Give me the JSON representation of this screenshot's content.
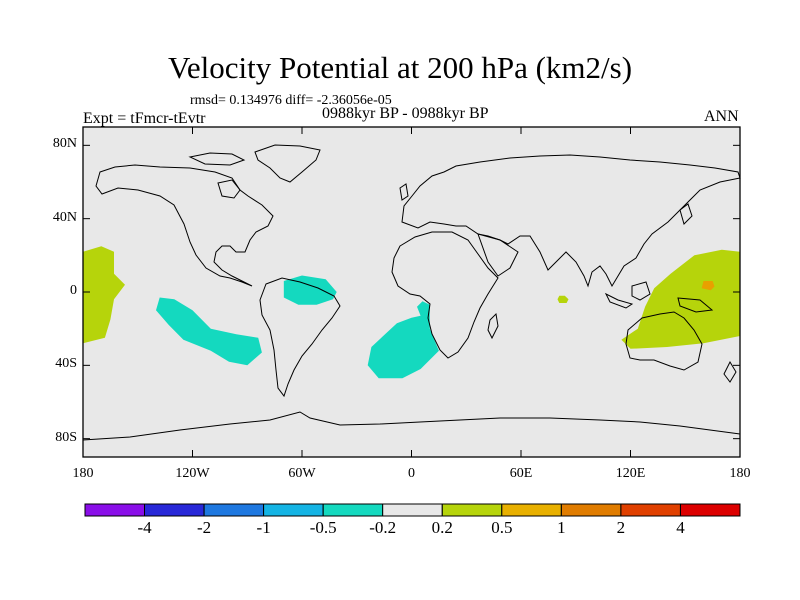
{
  "figure": {
    "title": "Velocity Potential at 200 hPa (km2/s)",
    "stats": "rmsd= 0.134976 diff= -2.36056e-05",
    "experiment": "Expt = tFmcr-tEvtr",
    "period": "0988kyr BP - 0988kyr BP",
    "season": "ANN"
  },
  "map": {
    "projection": "cylindrical-equidistant",
    "lon_range": [
      -180,
      180
    ],
    "lat_range": [
      -90,
      90
    ],
    "background_color": "#e8e8e8",
    "x_ticks": [
      {
        "value": -180,
        "label": "180"
      },
      {
        "value": -120,
        "label": "120W"
      },
      {
        "value": -60,
        "label": "60W"
      },
      {
        "value": 0,
        "label": "0"
      },
      {
        "value": 60,
        "label": "60E"
      },
      {
        "value": 120,
        "label": "120E"
      },
      {
        "value": 180,
        "label": "180"
      }
    ],
    "y_ticks": [
      {
        "value": 80,
        "label": "80N"
      },
      {
        "value": 40,
        "label": "40N"
      },
      {
        "value": 0,
        "label": "0"
      },
      {
        "value": -40,
        "label": "40S"
      },
      {
        "value": -80,
        "label": "80S"
      }
    ],
    "anomaly_regions": [
      {
        "name": "central-pacific-positive",
        "color": "#b6d40b",
        "bin": "0.2 to 0.5",
        "lonlat": [
          [
            -180,
            22
          ],
          [
            -170,
            25
          ],
          [
            -163,
            22
          ],
          [
            -163,
            10
          ],
          [
            -157,
            4
          ],
          [
            -163,
            -4
          ],
          [
            -165,
            -15
          ],
          [
            -168,
            -25
          ],
          [
            -180,
            -28
          ]
        ]
      },
      {
        "name": "west-pacific-positive",
        "color": "#b6d40b",
        "bin": "0.2 to 0.5",
        "lonlat": [
          [
            180,
            22
          ],
          [
            170,
            23
          ],
          [
            155,
            20
          ],
          [
            142,
            10
          ],
          [
            133,
            2
          ],
          [
            128,
            -8
          ],
          [
            124,
            -20
          ],
          [
            115,
            -26
          ],
          [
            120,
            -31
          ],
          [
            140,
            -30
          ],
          [
            160,
            -28
          ],
          [
            180,
            -24
          ]
        ]
      },
      {
        "name": "indian-ocean-positive",
        "color": "#b6d40b",
        "bin": "0.2 to 0.5",
        "lonlat": [
          [
            81,
            -2
          ],
          [
            84,
            -2
          ],
          [
            86,
            -4
          ],
          [
            85,
            -6
          ],
          [
            81,
            -6
          ],
          [
            80,
            -4
          ]
        ]
      },
      {
        "name": "west-pacific-peak",
        "color": "#e8a000",
        "bin": "0.5 to 1",
        "lonlat": [
          [
            160,
            6
          ],
          [
            165,
            6
          ],
          [
            166,
            3
          ],
          [
            164,
            1
          ],
          [
            159,
            2
          ]
        ]
      },
      {
        "name": "south-pacific-negative",
        "color": "#14d9bf",
        "bin": "-0.5 to -0.2",
        "lonlat": [
          [
            -138,
            -3
          ],
          [
            -130,
            -4
          ],
          [
            -120,
            -10
          ],
          [
            -110,
            -20
          ],
          [
            -96,
            -23
          ],
          [
            -84,
            -25
          ],
          [
            -82,
            -33
          ],
          [
            -90,
            -40
          ],
          [
            -100,
            -38
          ],
          [
            -110,
            -32
          ],
          [
            -125,
            -26
          ],
          [
            -133,
            -18
          ],
          [
            -140,
            -10
          ]
        ]
      },
      {
        "name": "amazon-negative",
        "color": "#14d9bf",
        "bin": "-0.5 to -0.2",
        "lonlat": [
          [
            -70,
            6
          ],
          [
            -60,
            9
          ],
          [
            -47,
            7
          ],
          [
            -41,
            0
          ],
          [
            -43,
            -4
          ],
          [
            -52,
            -7
          ],
          [
            -62,
            -7
          ],
          [
            -70,
            -3
          ]
        ]
      },
      {
        "name": "south-atlantic-negative",
        "color": "#14d9bf",
        "bin": "-0.5 to -0.2",
        "lonlat": [
          [
            -8,
            -17
          ],
          [
            0,
            -14
          ],
          [
            5,
            -13
          ],
          [
            3,
            -8
          ],
          [
            6,
            -5
          ],
          [
            10,
            -7
          ],
          [
            10,
            -20
          ],
          [
            15,
            -32
          ],
          [
            5,
            -42
          ],
          [
            -5,
            -47
          ],
          [
            -18,
            -47
          ],
          [
            -24,
            -40
          ],
          [
            -22,
            -30
          ]
        ]
      }
    ]
  },
  "colorbar": {
    "colors": [
      "#8a0ee8",
      "#2828d8",
      "#1e78e0",
      "#14b4e4",
      "#14d9bf",
      "#e8e8e8",
      "#b6d40b",
      "#e8b000",
      "#e07c00",
      "#e04000",
      "#dc0000"
    ],
    "labels": [
      "-4",
      "-2",
      "-1",
      "-0.5",
      "-0.2",
      "0.2",
      "0.5",
      "1",
      "2",
      "4"
    ]
  }
}
